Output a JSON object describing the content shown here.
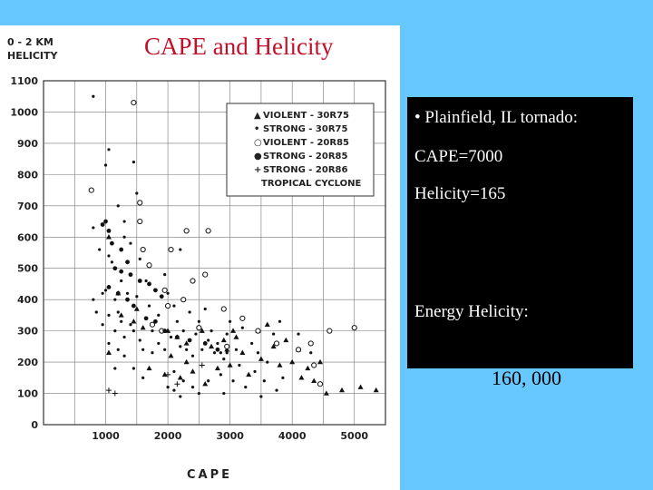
{
  "slide": {
    "title": "CAPE and Helicity",
    "background_color": "#66c8ff",
    "title_color": "#c0102a"
  },
  "info_box": {
    "line1": "• Plainfield, IL tornado:",
    "line2": "CAPE=7000",
    "line3": "Helicity=165",
    "line4": "Energy Helicity:",
    "value": "160, 000"
  },
  "chart_data": {
    "type": "scatter",
    "ylabel_lines": [
      "0 - 2 KM",
      "HELICITY"
    ],
    "xlabel": "CAPE",
    "xlim": [
      0,
      5500
    ],
    "ylim": [
      0,
      1100
    ],
    "x_ticks": [
      1000,
      2000,
      3000,
      4000,
      5000
    ],
    "y_ticks": [
      0,
      100,
      200,
      300,
      400,
      500,
      600,
      700,
      800,
      900,
      1000,
      1100
    ],
    "grid": true,
    "legend_position": "top-right",
    "legend": [
      {
        "symbol": "▲",
        "label": "VIOLENT  - 30R75"
      },
      {
        "symbol": "•",
        "label": "STRONG   - 30R75"
      },
      {
        "symbol": "○",
        "label": "VIOLENT  - 20R85"
      },
      {
        "symbol": "●",
        "label": "STRONG   - 20R85"
      },
      {
        "symbol": "+",
        "label": "STRONG   - 20R86"
      },
      {
        "symbol": "",
        "label": "TROPICAL CYCLONE"
      }
    ],
    "series": [
      {
        "marker": "triangle",
        "points": [
          [
            1050,
            600
          ],
          [
            1200,
            420
          ],
          [
            1500,
            370
          ],
          [
            1250,
            350
          ],
          [
            1450,
            330
          ],
          [
            2000,
            300
          ],
          [
            2150,
            280
          ],
          [
            2300,
            260
          ],
          [
            2700,
            250
          ],
          [
            2950,
            240
          ],
          [
            3100,
            280
          ],
          [
            3200,
            230
          ],
          [
            3500,
            210
          ],
          [
            3600,
            320
          ],
          [
            3700,
            250
          ],
          [
            3800,
            190
          ],
          [
            4000,
            200
          ],
          [
            4100,
            240
          ],
          [
            4150,
            150
          ],
          [
            4350,
            140
          ],
          [
            4450,
            200
          ],
          [
            4550,
            100
          ],
          [
            4800,
            110
          ],
          [
            5100,
            120
          ],
          [
            5350,
            110
          ],
          [
            3000,
            190
          ],
          [
            3300,
            160
          ],
          [
            2600,
            130
          ],
          [
            2300,
            200
          ],
          [
            2550,
            300
          ],
          [
            2050,
            220
          ],
          [
            3450,
            300
          ],
          [
            1600,
            310
          ],
          [
            1050,
            230
          ],
          [
            1700,
            180
          ],
          [
            1950,
            160
          ],
          [
            2800,
            180
          ],
          [
            3900,
            270
          ],
          [
            4250,
            180
          ],
          [
            2200,
            150
          ],
          [
            2400,
            170
          ],
          [
            2900,
            270
          ],
          [
            3050,
            300
          ]
        ]
      },
      {
        "marker": "dot",
        "points": [
          [
            800,
            1050
          ],
          [
            1050,
            880
          ],
          [
            1450,
            840
          ],
          [
            800,
            630
          ],
          [
            900,
            560
          ],
          [
            1050,
            540
          ],
          [
            1100,
            520
          ],
          [
            1300,
            600
          ],
          [
            1400,
            580
          ],
          [
            1550,
            530
          ],
          [
            1650,
            460
          ],
          [
            1250,
            460
          ],
          [
            1350,
            420
          ],
          [
            1500,
            410
          ],
          [
            1150,
            400
          ],
          [
            1200,
            360
          ],
          [
            1050,
            350
          ],
          [
            950,
            320
          ],
          [
            1250,
            330
          ],
          [
            1300,
            280
          ],
          [
            1050,
            260
          ],
          [
            1200,
            240
          ],
          [
            1300,
            220
          ],
          [
            1450,
            300
          ],
          [
            1550,
            270
          ],
          [
            1600,
            240
          ],
          [
            1750,
            300
          ],
          [
            1850,
            260
          ],
          [
            1950,
            240
          ],
          [
            2000,
            420
          ],
          [
            2100,
            380
          ],
          [
            2150,
            330
          ],
          [
            2250,
            300
          ],
          [
            2300,
            240
          ],
          [
            2400,
            220
          ],
          [
            2500,
            330
          ],
          [
            2650,
            270
          ],
          [
            2700,
            300
          ],
          [
            2800,
            260
          ],
          [
            2850,
            230
          ],
          [
            2900,
            210
          ],
          [
            3000,
            330
          ],
          [
            3200,
            310
          ],
          [
            3350,
            260
          ],
          [
            3450,
            230
          ],
          [
            3600,
            200
          ],
          [
            3700,
            290
          ],
          [
            3800,
            330
          ],
          [
            4100,
            290
          ],
          [
            4300,
            230
          ],
          [
            1000,
            430
          ],
          [
            1150,
            300
          ],
          [
            2200,
            250
          ],
          [
            2600,
            370
          ],
          [
            2950,
            290
          ],
          [
            850,
            360
          ],
          [
            800,
            400
          ],
          [
            950,
            420
          ],
          [
            1750,
            230
          ],
          [
            1850,
            350
          ],
          [
            2050,
            280
          ],
          [
            2450,
            290
          ],
          [
            2750,
            230
          ],
          [
            3100,
            240
          ],
          [
            1400,
            320
          ],
          [
            1700,
            380
          ],
          [
            2350,
            360
          ],
          [
            2550,
            240
          ],
          [
            2950,
            230
          ],
          [
            1150,
            180
          ],
          [
            1450,
            180
          ],
          [
            1600,
            150
          ],
          [
            2100,
            170
          ],
          [
            2250,
            140
          ],
          [
            2400,
            120
          ],
          [
            2650,
            140
          ],
          [
            2850,
            160
          ],
          [
            3050,
            140
          ],
          [
            3150,
            190
          ],
          [
            3400,
            170
          ],
          [
            3550,
            140
          ],
          [
            3750,
            110
          ],
          [
            3850,
            150
          ],
          [
            2000,
            120
          ],
          [
            2100,
            110
          ],
          [
            2200,
            90
          ],
          [
            2500,
            100
          ],
          [
            2900,
            100
          ],
          [
            3250,
            120
          ],
          [
            3500,
            90
          ],
          [
            1950,
            480
          ],
          [
            2200,
            560
          ],
          [
            1500,
            740
          ],
          [
            1000,
            830
          ],
          [
            1200,
            700
          ],
          [
            1300,
            650
          ]
        ]
      },
      {
        "marker": "open_circle",
        "points": [
          [
            1450,
            1030
          ],
          [
            770,
            750
          ],
          [
            1550,
            710
          ],
          [
            1550,
            650
          ],
          [
            1600,
            560
          ],
          [
            1700,
            510
          ],
          [
            1950,
            430
          ],
          [
            2250,
            400
          ],
          [
            2400,
            460
          ],
          [
            2600,
            480
          ],
          [
            2900,
            370
          ],
          [
            3200,
            340
          ],
          [
            3450,
            300
          ],
          [
            3750,
            260
          ],
          [
            4100,
            240
          ],
          [
            4300,
            260
          ],
          [
            4600,
            300
          ],
          [
            5000,
            310
          ],
          [
            4350,
            190
          ],
          [
            4450,
            130
          ],
          [
            2050,
            560
          ],
          [
            2300,
            620
          ],
          [
            2650,
            620
          ],
          [
            2500,
            310
          ],
          [
            1750,
            320
          ],
          [
            1900,
            300
          ],
          [
            2000,
            380
          ],
          [
            2950,
            250
          ]
        ]
      },
      {
        "marker": "filled_circle",
        "points": [
          [
            950,
            640
          ],
          [
            1000,
            650
          ],
          [
            1050,
            620
          ],
          [
            1100,
            580
          ],
          [
            1250,
            560
          ],
          [
            1350,
            520
          ],
          [
            1150,
            500
          ],
          [
            1250,
            490
          ],
          [
            1400,
            480
          ],
          [
            1550,
            460
          ],
          [
            1700,
            450
          ],
          [
            1800,
            430
          ],
          [
            1900,
            410
          ],
          [
            1050,
            440
          ],
          [
            1200,
            420
          ],
          [
            1350,
            400
          ],
          [
            1450,
            380
          ],
          [
            1650,
            340
          ],
          [
            1800,
            330
          ],
          [
            1950,
            300
          ],
          [
            2150,
            280
          ],
          [
            2350,
            270
          ],
          [
            2600,
            260
          ],
          [
            2800,
            240
          ]
        ]
      },
      {
        "marker": "plus",
        "points": [
          [
            1050,
            110
          ],
          [
            1150,
            100
          ],
          [
            2000,
            160
          ],
          [
            2150,
            130
          ],
          [
            2550,
            190
          ]
        ]
      }
    ]
  }
}
